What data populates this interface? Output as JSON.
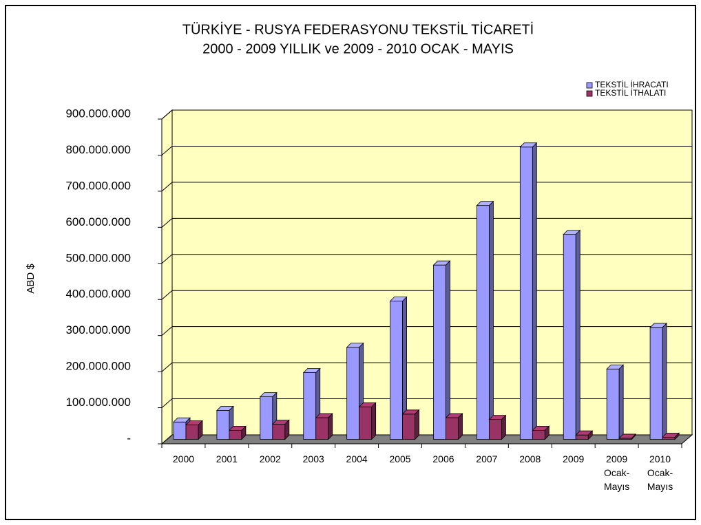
{
  "chart_data": {
    "type": "bar3d",
    "title": "TÜRKİYE - RUSYA FEDERASYONU TEKSTİL TİCARETİ",
    "subtitle": "2000 - 2009 YILLIK ve 2009 - 2010 OCAK - MAYIS",
    "y_label": "ABD $",
    "categories": [
      "2000",
      "2001",
      "2002",
      "2003",
      "2004",
      "2005",
      "2006",
      "2007",
      "2008",
      "2009",
      "2009 Ocak-Mayıs",
      "2010 Ocak-Mayıs"
    ],
    "series": [
      {
        "name": "TEKSTİL İHRACATI",
        "color": "#9999ff",
        "values": [
          48000000,
          80000000,
          118000000,
          185000000,
          255000000,
          383000000,
          483000000,
          648000000,
          810000000,
          568000000,
          195000000,
          310000000
        ]
      },
      {
        "name": "TEKSTİL İTHALATI",
        "color": "#993366",
        "values": [
          40000000,
          25000000,
          42000000,
          60000000,
          90000000,
          70000000,
          60000000,
          55000000,
          25000000,
          12000000,
          3000000,
          6000000
        ]
      }
    ],
    "ylim": [
      0,
      900000000
    ],
    "yticks": [
      {
        "value": 0,
        "label": "-"
      },
      {
        "value": 100000000,
        "label": "100.000.000"
      },
      {
        "value": 200000000,
        "label": "200.000.000"
      },
      {
        "value": 300000000,
        "label": "300.000.000"
      },
      {
        "value": 400000000,
        "label": "400.000.000"
      },
      {
        "value": 500000000,
        "label": "500.000.000"
      },
      {
        "value": 600000000,
        "label": "600.000.000"
      },
      {
        "value": 700000000,
        "label": "700.000.000"
      },
      {
        "value": 800000000,
        "label": "800.000.000"
      },
      {
        "value": 900000000,
        "label": "900.000.000"
      }
    ],
    "grid": true,
    "legend": "top-right"
  }
}
